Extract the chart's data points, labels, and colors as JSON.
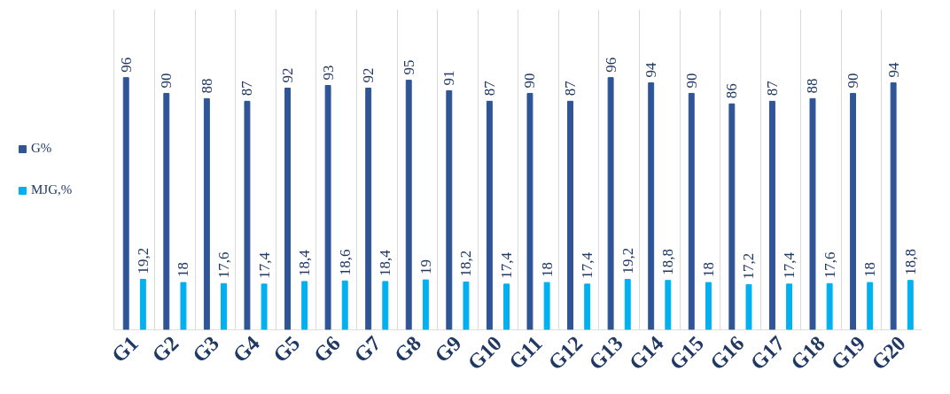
{
  "chart_data": {
    "type": "bar",
    "categories": [
      "G1",
      "G2",
      "G3",
      "G4",
      "G5",
      "G6",
      "G7",
      "G8",
      "G9",
      "G10",
      "G11",
      "G12",
      "G13",
      "G14",
      "G15",
      "G16",
      "G17",
      "G18",
      "G19",
      "G20"
    ],
    "series": [
      {
        "name": "G%",
        "color": "#2f5597",
        "values": [
          96,
          90,
          88,
          87,
          92,
          93,
          92,
          95,
          91,
          87,
          90,
          87,
          96,
          94,
          90,
          86,
          87,
          88,
          90,
          94
        ],
        "value_labels": [
          "96",
          "90",
          "88",
          "87",
          "92",
          "93",
          "92",
          "95",
          "91",
          "87",
          "90",
          "87",
          "96",
          "94",
          "90",
          "86",
          "87",
          "88",
          "90",
          "94"
        ]
      },
      {
        "name": "MJG,%",
        "color": "#00b0f0",
        "values": [
          19.2,
          18,
          17.6,
          17.4,
          18.4,
          18.6,
          18.4,
          19,
          18.2,
          17.4,
          18,
          17.4,
          19.2,
          18.8,
          18,
          17.2,
          17.4,
          17.6,
          18,
          18.8
        ],
        "value_labels": [
          "19,2",
          "18",
          "17,6",
          "17,4",
          "18,4",
          "18,6",
          "18,4",
          "19",
          "18,2",
          "17,4",
          "18",
          "17,4",
          "19,2",
          "18,8",
          "18",
          "17,2",
          "17,4",
          "17,6",
          "18",
          "18,8"
        ]
      }
    ],
    "ylim": [
      0,
      122
    ],
    "tick_labels": "x",
    "grid": "x",
    "legend": "left"
  }
}
